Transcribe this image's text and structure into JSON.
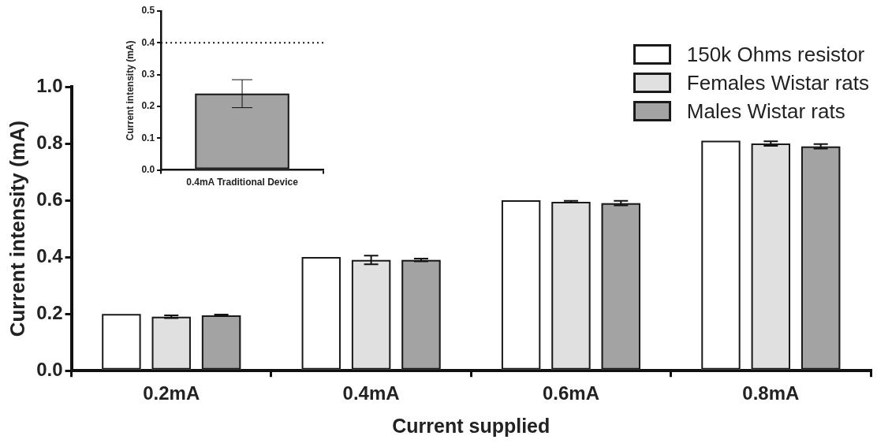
{
  "chart_data": [
    {
      "type": "bar",
      "xlabel": "Current supplied",
      "ylabel": "Current intensity (mA)",
      "categories": [
        "0.2mA",
        "0.4mA",
        "0.6mA",
        "0.8mA"
      ],
      "series": [
        {
          "name": "150k Ohms resistor",
          "color": "#ffffff",
          "values": [
            0.2,
            0.4,
            0.6,
            0.81
          ]
        },
        {
          "name": "Females Wistar rats",
          "color": "#e0e0e0",
          "values": [
            0.19,
            0.39,
            0.595,
            0.8
          ],
          "errors": [
            0.005,
            0.015,
            0.003,
            0.008
          ]
        },
        {
          "name": "Males Wistar rats",
          "color": "#a3a3a3",
          "values": [
            0.195,
            0.39,
            0.59,
            0.79
          ],
          "errors": [
            0.003,
            0.005,
            0.008,
            0.008
          ]
        }
      ],
      "ylim": [
        0,
        1
      ],
      "yticks": [
        {
          "value": 0,
          "label": "0.0"
        },
        {
          "value": 0.2,
          "label": "0.2"
        },
        {
          "value": 0.4,
          "label": "0.4"
        },
        {
          "value": 0.6,
          "label": "0.6"
        },
        {
          "value": 0.8,
          "label": "0.8"
        },
        {
          "value": 1,
          "label": "1.0"
        }
      ],
      "grid": false,
      "legend": "top right"
    },
    {
      "type": "bar",
      "ylabel": "Current intensity (mA)",
      "categories": [
        "0.4mA Traditional Device"
      ],
      "series": [
        {
          "color": "#a3a3a3",
          "values": [
            0.24
          ],
          "errors": [
            0.044
          ]
        }
      ],
      "ylim": [
        0,
        0.5
      ],
      "yticks": [
        {
          "value": 0,
          "label": "0.0"
        },
        {
          "value": 0.1,
          "label": "0.1"
        },
        {
          "value": 0.2,
          "label": "0.2"
        },
        {
          "value": 0.3,
          "label": "0.3"
        },
        {
          "value": 0.4,
          "label": "0.4"
        },
        {
          "value": 0.5,
          "label": "0.5"
        }
      ],
      "grid": false,
      "ref_lines": [
        {
          "axis": "y",
          "value": 0.4,
          "line_style": "dotted"
        }
      ]
    }
  ]
}
